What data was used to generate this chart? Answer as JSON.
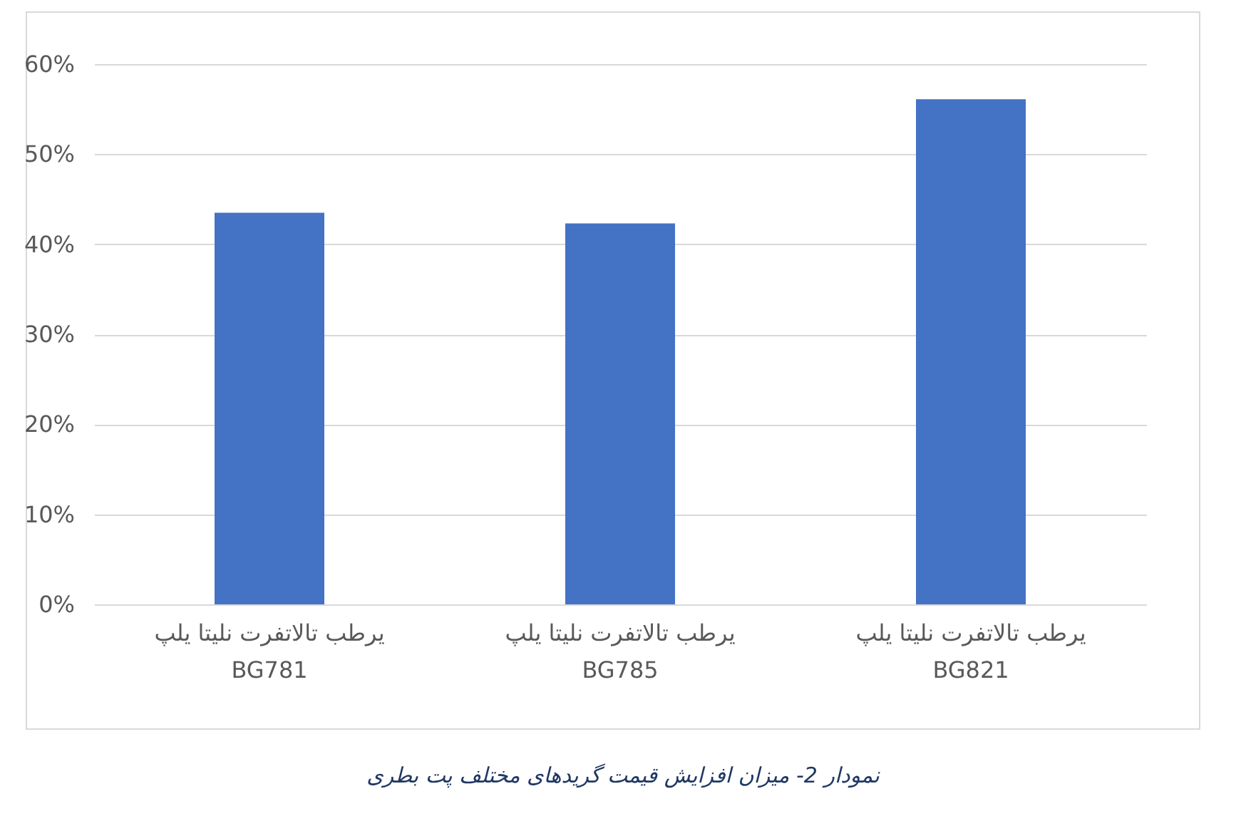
{
  "chart_data": {
    "type": "bar",
    "categories": [
      "یرطب تالاتفرت نلیتا یلپ\nBG781",
      "یرطب تالاتفرت نلیتا یلپ\nBG785",
      "یرطب تالاتفرت نلیتا یلپ\nBG821"
    ],
    "values": [
      43.5,
      42.3,
      56.1
    ],
    "color": "#4472c4",
    "ylim": [
      0,
      60
    ],
    "yticks": [
      {
        "value": 0,
        "label": "0%"
      },
      {
        "value": 10,
        "label": "10%"
      },
      {
        "value": 20,
        "label": "20%"
      },
      {
        "value": 30,
        "label": "30%"
      },
      {
        "value": 40,
        "label": "40%"
      },
      {
        "value": 50,
        "label": "50%"
      },
      {
        "value": 60,
        "label": "60%"
      }
    ],
    "grid": "y",
    "annotations": [
      "نمودار 2- میزان افزایش قیمت گریدهای مختلف پت بطری"
    ]
  }
}
